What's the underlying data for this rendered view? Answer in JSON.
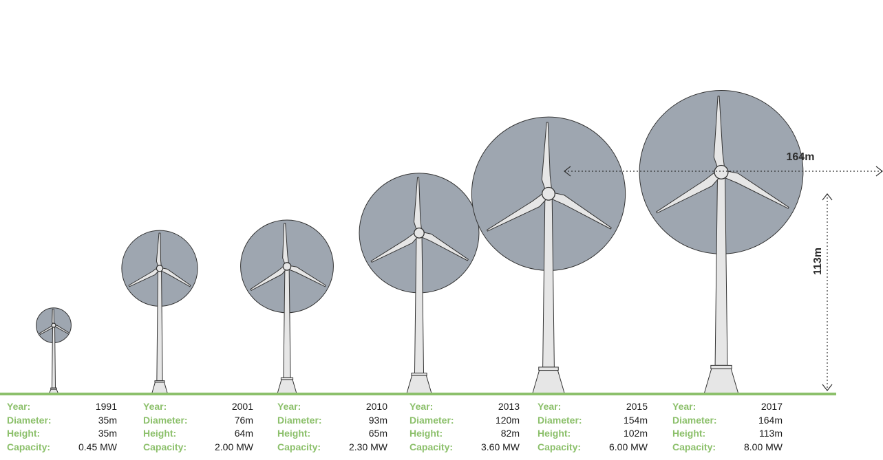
{
  "labels": {
    "year": "Year:",
    "diameter": "Diameter:",
    "height": "Height:",
    "capacity": "Capacity:"
  },
  "turbines": [
    {
      "year": "1991",
      "diameter": "35m",
      "height": "35m",
      "capacity": "0.45 MW",
      "diameter_m": 35,
      "height_m": 35
    },
    {
      "year": "2001",
      "diameter": "76m",
      "height": "64m",
      "capacity": "2.00 MW",
      "diameter_m": 76,
      "height_m": 64
    },
    {
      "year": "2010",
      "diameter": "93m",
      "height": "65m",
      "capacity": "2.30 MW",
      "diameter_m": 93,
      "height_m": 65
    },
    {
      "year": "2013",
      "diameter": "120m",
      "height": "82m",
      "capacity": "3.60 MW",
      "diameter_m": 120,
      "height_m": 82
    },
    {
      "year": "2015",
      "diameter": "154m",
      "height": "102m",
      "capacity": "6.00 MW",
      "diameter_m": 154,
      "height_m": 102
    },
    {
      "year": "2017",
      "diameter": "164m",
      "height": "113m",
      "capacity": "8.00 MW",
      "diameter_m": 164,
      "height_m": 113
    }
  ],
  "dimensions": {
    "diameter_label": "164m",
    "height_label": "113m"
  },
  "colors": {
    "rotor_disc": "#9ea6b0",
    "turbine_body": "#e6e6e6",
    "outline": "#333333",
    "ground": "#8cc06b",
    "label_green": "#8cc06b"
  }
}
